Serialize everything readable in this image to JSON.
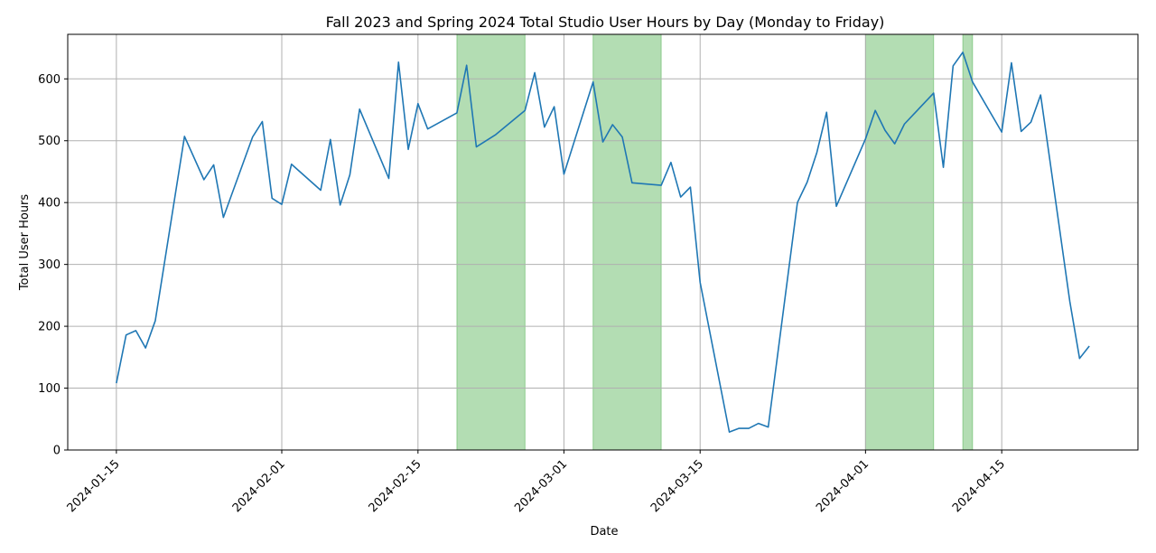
{
  "chart_data": {
    "type": "line",
    "title": "Fall 2023 and Spring 2024 Total Studio User Hours by Day (Monday to Friday)",
    "xlabel": "Date",
    "ylabel": "Total User Hours",
    "xlim": [
      "2024-01-10",
      "2024-04-29"
    ],
    "ylim": [
      0,
      672
    ],
    "grid": true,
    "x_ticks": [
      "2024-01-15",
      "2024-02-01",
      "2024-02-15",
      "2024-03-01",
      "2024-03-15",
      "2024-04-01",
      "2024-04-15"
    ],
    "y_ticks": [
      0,
      100,
      200,
      300,
      400,
      500,
      600
    ],
    "line_color": "#1f77b4",
    "shade_color": "#2ca02c",
    "shaded_ranges": [
      [
        "2024-02-19",
        "2024-02-26"
      ],
      [
        "2024-03-04",
        "2024-03-11"
      ],
      [
        "2024-04-01",
        "2024-04-08"
      ],
      [
        "2024-04-11",
        "2024-04-12"
      ]
    ],
    "series": [
      {
        "x": [
          "2024-01-15",
          "2024-01-16",
          "2024-01-17",
          "2024-01-18",
          "2024-01-19",
          "2024-01-22",
          "2024-01-24",
          "2024-01-25",
          "2024-01-26",
          "2024-01-29",
          "2024-01-30",
          "2024-01-31",
          "2024-02-01",
          "2024-02-02",
          "2024-02-05",
          "2024-02-06",
          "2024-02-07",
          "2024-02-08",
          "2024-02-09",
          "2024-02-12",
          "2024-02-13",
          "2024-02-14",
          "2024-02-15",
          "2024-02-16",
          "2024-02-19",
          "2024-02-20",
          "2024-02-21",
          "2024-02-23",
          "2024-02-26",
          "2024-02-27",
          "2024-02-28",
          "2024-02-29",
          "2024-03-01",
          "2024-03-04",
          "2024-03-05",
          "2024-03-06",
          "2024-03-07",
          "2024-03-08",
          "2024-03-11",
          "2024-03-12",
          "2024-03-13",
          "2024-03-14",
          "2024-03-15",
          "2024-03-18",
          "2024-03-19",
          "2024-03-20",
          "2024-03-21",
          "2024-03-22",
          "2024-03-25",
          "2024-03-26",
          "2024-03-27",
          "2024-03-28",
          "2024-03-29",
          "2024-04-01",
          "2024-04-02",
          "2024-04-03",
          "2024-04-04",
          "2024-04-05",
          "2024-04-08",
          "2024-04-09",
          "2024-04-10",
          "2024-04-11",
          "2024-04-12",
          "2024-04-15",
          "2024-04-16",
          "2024-04-17",
          "2024-04-18",
          "2024-04-19",
          "2024-04-22",
          "2024-04-23",
          "2024-04-24"
        ],
        "values": [
          108,
          186,
          193,
          165,
          209,
          507,
          437,
          461,
          376,
          506,
          531,
          407,
          397,
          462,
          420,
          502,
          396,
          445,
          551,
          439,
          627,
          486,
          560,
          519,
          545,
          622,
          490,
          510,
          549,
          610,
          522,
          555,
          446,
          595,
          498,
          526,
          506,
          432,
          428,
          465,
          409,
          425,
          271,
          29,
          35,
          35,
          43,
          37,
          400,
          433,
          481,
          546,
          394,
          503,
          549,
          517,
          495,
          527,
          577,
          457,
          621,
          643,
          595,
          514,
          626,
          515,
          530,
          574,
          240,
          148,
          168
        ]
      }
    ]
  }
}
